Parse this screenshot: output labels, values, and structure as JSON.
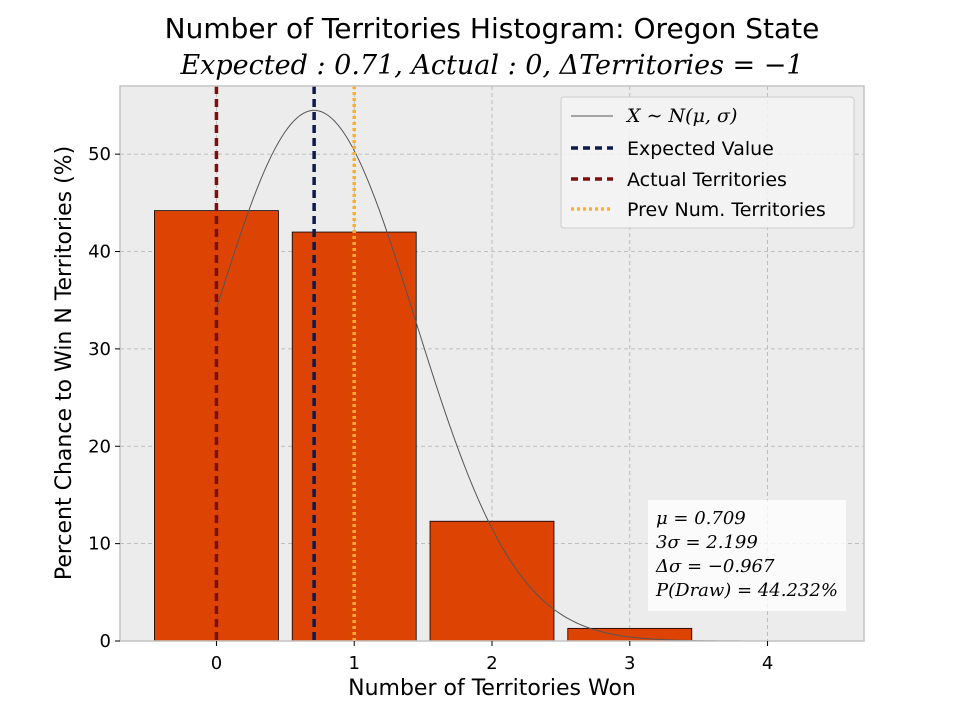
{
  "chart_data": {
    "type": "bar",
    "title": "Number of Territories Histogram: Oregon State",
    "subtitle": "Expected : 0.71, Actual : 0, ΔTerritories = −1",
    "xlabel": "Number of Territories Won",
    "ylabel": "Percent Chance to Win N Territories (%)",
    "categories": [
      0,
      1,
      2,
      3,
      4
    ],
    "values": [
      44.2,
      42.0,
      12.3,
      1.3,
      0.0
    ],
    "xlim": [
      -0.7,
      4.7
    ],
    "ylim": [
      0,
      57
    ],
    "xticks": [
      0,
      1,
      2,
      3,
      4
    ],
    "yticks": [
      0,
      10,
      20,
      30,
      40,
      50
    ],
    "grid": true,
    "normal_curve": {
      "mu": 0.709,
      "peak": 54.5,
      "x_start": 0,
      "x_end": 4.5
    },
    "vlines": [
      {
        "name": "Expected Value",
        "x": 0.709,
        "color": "#0d1b4c",
        "style": "dashed"
      },
      {
        "name": "Actual Territories",
        "x": 0,
        "color": "#7a1010",
        "style": "dashed"
      },
      {
        "name": "Prev Num. Territories",
        "x": 1,
        "color": "#ffae2a",
        "style": "dotted"
      }
    ],
    "legend": {
      "position": "top-right",
      "entries": [
        "X ∼ N(μ, σ)",
        "Expected Value",
        "Actual Territories",
        "Prev Num. Territories"
      ]
    },
    "stats_box": {
      "position": "bottom-right",
      "lines": [
        "μ = 0.709",
        "3σ = 2.199",
        "Δσ = −0.967",
        "P(Draw) = 44.232%"
      ]
    },
    "colors": {
      "bar": "#dd4404",
      "bar_edge": "#000000",
      "curve": "#555555",
      "background": "#ececec",
      "grid": "#b0b0b0"
    }
  }
}
